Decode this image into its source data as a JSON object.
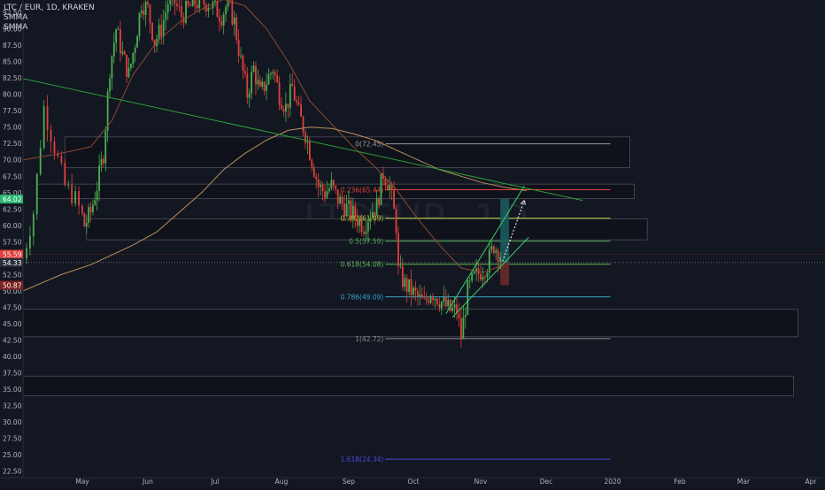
{
  "header": {
    "symbol": "LTC / EUR, 1D, KRAKEN",
    "indicator_1": "SMMA",
    "indicator_2": "SMMA"
  },
  "watermark": "LTCEUR, 1D",
  "colors": {
    "background": "#131722",
    "text": "#b2b5be",
    "zone_fill": "#0f121a",
    "zone_border": "#4a4e59",
    "trendline": "#2e9c3a",
    "smma_fast": "#8a4b33",
    "smma_slow": "#b98f58",
    "fib_0": "#9b9b9b",
    "fib_0236": "#e0413c",
    "fib_0382": "#b5d33b",
    "fib_05": "#4caf50",
    "fib_0618": "#5fba50",
    "fib_0786": "#35a3c7",
    "fib_1": "#8a8a8a",
    "fib_1618": "#4b4bd8",
    "candle_up": "#4caf50",
    "candle_down": "#e0413c",
    "badge_green": "#2bb673",
    "badge_red": "#e0413c",
    "badge_darkred": "#7d2222",
    "badge_gray": "#2a2e39",
    "position_target": "#1b5e60",
    "position_stop": "#6a2a2a"
  },
  "chart_data": {
    "type": "candlestick",
    "symbol": "LTC / EUR",
    "timeframe": "1D",
    "exchange": "KRAKEN",
    "ylim": [
      22.5,
      93.5
    ],
    "y_ticks": [
      "92.50",
      "90.00",
      "87.50",
      "85.00",
      "82.50",
      "80.00",
      "77.50",
      "75.00",
      "72.50",
      "70.00",
      "67.50",
      "65.00",
      "62.50",
      "60.00",
      "57.50",
      "55.00",
      "52.50",
      "50.00",
      "47.50",
      "45.00",
      "42.50",
      "40.00",
      "37.50",
      "35.00",
      "32.50",
      "30.00",
      "27.50",
      "25.00",
      "22.50"
    ],
    "x_ticks": [
      "May",
      "Jun",
      "Jul",
      "Aug",
      "Sep",
      "Oct",
      "Nov",
      "Dec",
      "2020",
      "Feb",
      "Mar",
      "Apr"
    ],
    "price_badges": [
      {
        "label": "64.02",
        "value": 64.02,
        "color": "badge_green"
      },
      {
        "label": "55.59",
        "value": 55.59,
        "color": "badge_red"
      },
      {
        "label": "54.33",
        "value": 54.33,
        "color": "badge_gray"
      },
      {
        "label": "50.87",
        "value": 50.87,
        "color": "badge_darkred"
      }
    ],
    "fib_levels": [
      {
        "label": "0(72.45)",
        "value": 72.45,
        "color": "fib_0"
      },
      {
        "label": "0.236(65.44)",
        "value": 65.44,
        "color": "fib_0236"
      },
      {
        "label": "0.382(61.09)",
        "value": 61.09,
        "color": "fib_0382"
      },
      {
        "label": "0.5(57.59)",
        "value": 57.59,
        "color": "fib_05"
      },
      {
        "label": "0.618(54.08)",
        "value": 54.08,
        "color": "fib_0618"
      },
      {
        "label": "0.786(49.09)",
        "value": 49.09,
        "color": "fib_0786"
      },
      {
        "label": "1(42.72)",
        "value": 42.72,
        "color": "fib_1"
      },
      {
        "label": "1.618(24.34)",
        "value": 24.34,
        "color": "fib_1618"
      }
    ],
    "zones": [
      {
        "top": 73.5,
        "bottom": 68.8,
        "from": "2019-04-26",
        "to": "2020-01-09"
      },
      {
        "top": 66.3,
        "bottom": 64.1,
        "from": "2019-04-18",
        "to": "2020-01-11"
      },
      {
        "top": 61.0,
        "bottom": 57.8,
        "from": "2019-05-03",
        "to": "2020-01-17"
      },
      {
        "top": 47.2,
        "bottom": 43.0,
        "from": "2019-04-14",
        "to": "2020-03-26"
      },
      {
        "top": 37.0,
        "bottom": 34.0,
        "from": "2019-04-14",
        "to": "2020-03-24"
      }
    ],
    "trendline": {
      "start": [
        "2019-04-14",
        82.4
      ],
      "end": [
        "2019-12-18",
        63.8
      ]
    },
    "channel": [
      {
        "start": [
          "2019-10-16",
          46.5
        ],
        "end": [
          "2019-11-21",
          66.0
        ]
      },
      {
        "start": [
          "2019-10-19",
          46.0
        ],
        "end": [
          "2019-11-23",
          58.2
        ]
      }
    ],
    "projection": {
      "from": [
        "2019-11-11",
        54.5
      ],
      "to": [
        "2019-11-21",
        63.8
      ]
    },
    "position": {
      "from": "2019-11-10",
      "to": "2019-11-14",
      "entry": 54.33,
      "target": 64.02,
      "stop": 50.87
    },
    "smma_fast": [
      [
        "2019-04-14",
        70.0
      ],
      [
        "2019-04-25",
        71.0
      ],
      [
        "2019-05-05",
        72.0
      ],
      [
        "2019-05-15",
        76.0
      ],
      [
        "2019-05-25",
        83.0
      ],
      [
        "2019-06-05",
        88.0
      ],
      [
        "2019-06-15",
        91.0
      ],
      [
        "2019-06-25",
        93.0
      ],
      [
        "2019-07-05",
        94.5
      ],
      [
        "2019-07-15",
        93.5
      ],
      [
        "2019-07-25",
        90.0
      ],
      [
        "2019-08-04",
        85.0
      ],
      [
        "2019-08-14",
        79.0
      ],
      [
        "2019-08-24",
        75.5
      ],
      [
        "2019-09-03",
        72.0
      ],
      [
        "2019-09-13",
        69.0
      ],
      [
        "2019-09-23",
        65.5
      ],
      [
        "2019-10-03",
        61.0
      ],
      [
        "2019-10-13",
        57.0
      ],
      [
        "2019-10-23",
        53.5
      ],
      [
        "2019-11-02",
        52.8
      ],
      [
        "2019-11-10",
        53.8
      ]
    ],
    "smma_slow": [
      [
        "2019-04-14",
        50.0
      ],
      [
        "2019-04-25",
        52.5
      ],
      [
        "2019-05-05",
        54.0
      ],
      [
        "2019-05-15",
        55.5
      ],
      [
        "2019-05-25",
        57.0
      ],
      [
        "2019-06-05",
        59.0
      ],
      [
        "2019-06-15",
        62.0
      ],
      [
        "2019-06-25",
        65.0
      ],
      [
        "2019-07-05",
        68.5
      ],
      [
        "2019-07-15",
        71.0
      ],
      [
        "2019-07-25",
        73.0
      ],
      [
        "2019-08-04",
        74.5
      ],
      [
        "2019-08-14",
        75.0
      ],
      [
        "2019-08-24",
        74.8
      ],
      [
        "2019-09-03",
        74.0
      ],
      [
        "2019-09-13",
        73.0
      ],
      [
        "2019-09-23",
        71.5
      ],
      [
        "2019-10-03",
        70.0
      ],
      [
        "2019-10-13",
        68.5
      ],
      [
        "2019-10-23",
        67.5
      ],
      [
        "2019-11-02",
        66.5
      ],
      [
        "2019-11-12",
        65.8
      ],
      [
        "2019-11-22",
        65.3
      ]
    ],
    "price": [
      [
        "2019-04-14",
        55
      ],
      [
        "2019-04-17",
        62
      ],
      [
        "2019-04-20",
        78
      ],
      [
        "2019-04-23",
        72
      ],
      [
        "2019-04-26",
        66
      ],
      [
        "2019-04-29",
        64
      ],
      [
        "2019-05-02",
        60
      ],
      [
        "2019-05-05",
        62
      ],
      [
        "2019-05-08",
        66
      ],
      [
        "2019-05-11",
        71
      ],
      [
        "2019-05-14",
        84
      ],
      [
        "2019-05-17",
        90
      ],
      [
        "2019-05-20",
        86
      ],
      [
        "2019-05-23",
        83
      ],
      [
        "2019-05-26",
        88
      ],
      [
        "2019-05-29",
        94
      ],
      [
        "2019-06-01",
        93
      ],
      [
        "2019-06-04",
        88
      ],
      [
        "2019-06-07",
        90
      ],
      [
        "2019-06-10",
        94
      ],
      [
        "2019-06-13",
        94
      ],
      [
        "2019-06-16",
        92
      ],
      [
        "2019-06-19",
        93
      ],
      [
        "2019-06-22",
        94
      ],
      [
        "2019-06-25",
        94
      ],
      [
        "2019-06-28",
        94
      ],
      [
        "2019-07-01",
        93
      ],
      [
        "2019-07-04",
        92
      ],
      [
        "2019-07-07",
        94
      ],
      [
        "2019-07-10",
        91
      ],
      [
        "2019-07-13",
        85
      ],
      [
        "2019-07-16",
        80
      ],
      [
        "2019-07-19",
        84
      ],
      [
        "2019-07-22",
        80
      ],
      [
        "2019-07-25",
        82
      ],
      [
        "2019-07-28",
        84
      ],
      [
        "2019-07-31",
        80
      ],
      [
        "2019-08-03",
        78
      ],
      [
        "2019-08-06",
        81
      ],
      [
        "2019-08-09",
        77
      ],
      [
        "2019-08-12",
        74
      ],
      [
        "2019-08-15",
        70
      ],
      [
        "2019-08-18",
        66
      ],
      [
        "2019-08-21",
        65
      ],
      [
        "2019-08-24",
        66
      ],
      [
        "2019-08-27",
        64
      ],
      [
        "2019-08-30",
        63
      ],
      [
        "2019-09-02",
        62
      ],
      [
        "2019-09-05",
        61
      ],
      [
        "2019-09-08",
        60
      ],
      [
        "2019-09-11",
        62
      ],
      [
        "2019-09-14",
        63
      ],
      [
        "2019-09-17",
        68
      ],
      [
        "2019-09-20",
        66
      ],
      [
        "2019-09-23",
        60
      ],
      [
        "2019-09-24",
        53
      ],
      [
        "2019-09-27",
        51
      ],
      [
        "2019-09-30",
        50
      ],
      [
        "2019-10-03",
        49
      ],
      [
        "2019-10-06",
        48
      ],
      [
        "2019-10-09",
        50
      ],
      [
        "2019-10-12",
        49
      ],
      [
        "2019-10-15",
        48
      ],
      [
        "2019-10-18",
        47
      ],
      [
        "2019-10-21",
        47
      ],
      [
        "2019-10-23",
        43
      ],
      [
        "2019-10-26",
        50
      ],
      [
        "2019-10-29",
        52
      ],
      [
        "2019-11-01",
        53
      ],
      [
        "2019-11-04",
        54
      ],
      [
        "2019-11-07",
        57
      ],
      [
        "2019-11-10",
        55.6
      ]
    ]
  }
}
